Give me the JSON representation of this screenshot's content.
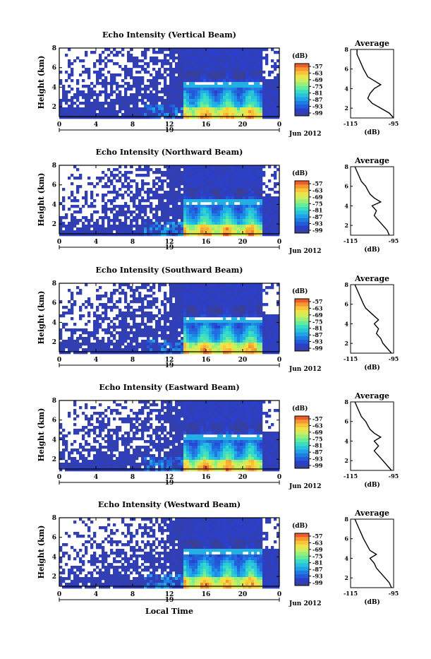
{
  "figure": {
    "date_label": "Jun 2012",
    "xlabel_bottom": "Local Time",
    "x_ticks": [
      "0",
      "4",
      "8",
      "12",
      "16",
      "20",
      "0"
    ],
    "day_label": "19",
    "ylabel": "Height (km)",
    "y_ticks": [
      "2",
      "4",
      "6",
      "8"
    ],
    "colorbar_unit": "(dB)",
    "colorbar_ticks": [
      "-57",
      "-63",
      "-69",
      "-75",
      "-81",
      "-87",
      "-93",
      "-99"
    ],
    "colorbar_colors": [
      "#3a3f8f",
      "#2a3fcf",
      "#1f6fe0",
      "#1fa8e8",
      "#2fd8d0",
      "#6ff08f",
      "#c8f060",
      "#f8e040",
      "#f89a30",
      "#e8402a"
    ],
    "avg_title": "Average",
    "avg_xlabel": "(dB)",
    "avg_x_ticks": [
      "-115",
      "-95"
    ],
    "avg_y_ticks": [
      "2",
      "4",
      "6",
      "8"
    ]
  },
  "chart_data": [
    {
      "type": "heatmap",
      "title": "Echo Intensity (Vertical Beam)",
      "xlabel": "",
      "ylabel": "Height (km)",
      "xlim": [
        0,
        24
      ],
      "ylim": [
        1,
        8
      ],
      "colorbar": {
        "label": "(dB)",
        "range": [
          -99,
          -57
        ]
      },
      "bright_layer_height_km": 4.4,
      "average_profile": {
        "title": "Average",
        "xlabel": "(dB)",
        "xlim": [
          -115,
          -95
        ],
        "height_km": [
          1.0,
          1.5,
          2.0,
          2.5,
          3.0,
          3.5,
          4.0,
          4.4,
          4.8,
          5.2,
          5.6,
          6.0,
          6.5,
          7.0,
          7.5,
          8.0
        ],
        "intensity_db": [
          -95,
          -97,
          -101,
          -105,
          -107,
          -106,
          -104,
          -101,
          -104,
          -107,
          -108,
          -109,
          -110,
          -111,
          -112,
          -112
        ]
      }
    },
    {
      "type": "heatmap",
      "title": "Echo Intensity (Northward Beam)",
      "xlabel": "",
      "ylabel": "Height (km)",
      "xlim": [
        0,
        24
      ],
      "ylim": [
        1,
        8
      ],
      "colorbar": {
        "label": "(dB)",
        "range": [
          -99,
          -57
        ]
      },
      "bright_layer_height_km": 4.3,
      "average_profile": {
        "title": "Average",
        "xlabel": "(dB)",
        "xlim": [
          -115,
          -95
        ],
        "height_km": [
          1.0,
          1.5,
          2.0,
          2.5,
          3.0,
          3.5,
          4.0,
          4.4,
          4.8,
          5.2,
          5.6,
          6.0,
          6.5,
          7.0,
          7.5,
          8.0
        ],
        "intensity_db": [
          -97,
          -98,
          -100,
          -102,
          -104,
          -103,
          -105,
          -101,
          -104,
          -106,
          -107,
          -108,
          -110,
          -111,
          -112,
          -113
        ]
      }
    },
    {
      "type": "heatmap",
      "title": "Echo Intensity (Southward Beam)",
      "xlabel": "",
      "ylabel": "Height (km)",
      "xlim": [
        0,
        24
      ],
      "ylim": [
        1,
        8
      ],
      "colorbar": {
        "label": "(dB)",
        "range": [
          -99,
          -57
        ]
      },
      "bright_layer_height_km": 4.4,
      "average_profile": {
        "title": "Average",
        "xlabel": "(dB)",
        "xlim": [
          -115,
          -95
        ],
        "height_km": [
          1.0,
          1.5,
          2.0,
          2.5,
          3.0,
          3.5,
          4.0,
          4.4,
          4.8,
          5.2,
          5.6,
          6.0,
          6.5,
          7.0,
          7.5,
          8.0
        ],
        "intensity_db": [
          -96,
          -98,
          -100,
          -101,
          -103,
          -102,
          -104,
          -102,
          -104,
          -106,
          -108,
          -109,
          -110,
          -111,
          -112,
          -113
        ]
      }
    },
    {
      "type": "heatmap",
      "title": "Echo Intensity (Eastward Beam)",
      "xlabel": "",
      "ylabel": "Height (km)",
      "xlim": [
        0,
        24
      ],
      "ylim": [
        1,
        8
      ],
      "colorbar": {
        "label": "(dB)",
        "range": [
          -99,
          -57
        ]
      },
      "bright_layer_height_km": 4.4,
      "average_profile": {
        "title": "Average",
        "xlabel": "(dB)",
        "xlim": [
          -115,
          -95
        ],
        "height_km": [
          1.0,
          1.5,
          2.0,
          2.5,
          3.0,
          3.5,
          4.0,
          4.4,
          4.8,
          5.2,
          5.6,
          6.0,
          6.5,
          7.0,
          7.5,
          8.0
        ],
        "intensity_db": [
          -96,
          -98,
          -100,
          -102,
          -104,
          -102,
          -104,
          -101,
          -104,
          -106,
          -107,
          -108,
          -110,
          -111,
          -112,
          -113
        ]
      }
    },
    {
      "type": "heatmap",
      "title": "Echo Intensity (Westward Beam)",
      "xlabel": "Local Time",
      "ylabel": "Height (km)",
      "xlim": [
        0,
        24
      ],
      "ylim": [
        1,
        8
      ],
      "colorbar": {
        "label": "(dB)",
        "range": [
          -99,
          -57
        ]
      },
      "bright_layer_height_km": 4.6,
      "average_profile": {
        "title": "Average",
        "xlabel": "(dB)",
        "xlim": [
          -115,
          -95
        ],
        "height_km": [
          1.0,
          1.5,
          2.0,
          2.5,
          3.0,
          3.5,
          4.0,
          4.4,
          4.8,
          5.2,
          5.6,
          6.0,
          6.5,
          7.0,
          7.5,
          8.0
        ],
        "intensity_db": [
          -96,
          -97,
          -99,
          -101,
          -103,
          -104,
          -106,
          -103,
          -106,
          -107,
          -108,
          -109,
          -110,
          -111,
          -112,
          -113
        ]
      }
    }
  ]
}
